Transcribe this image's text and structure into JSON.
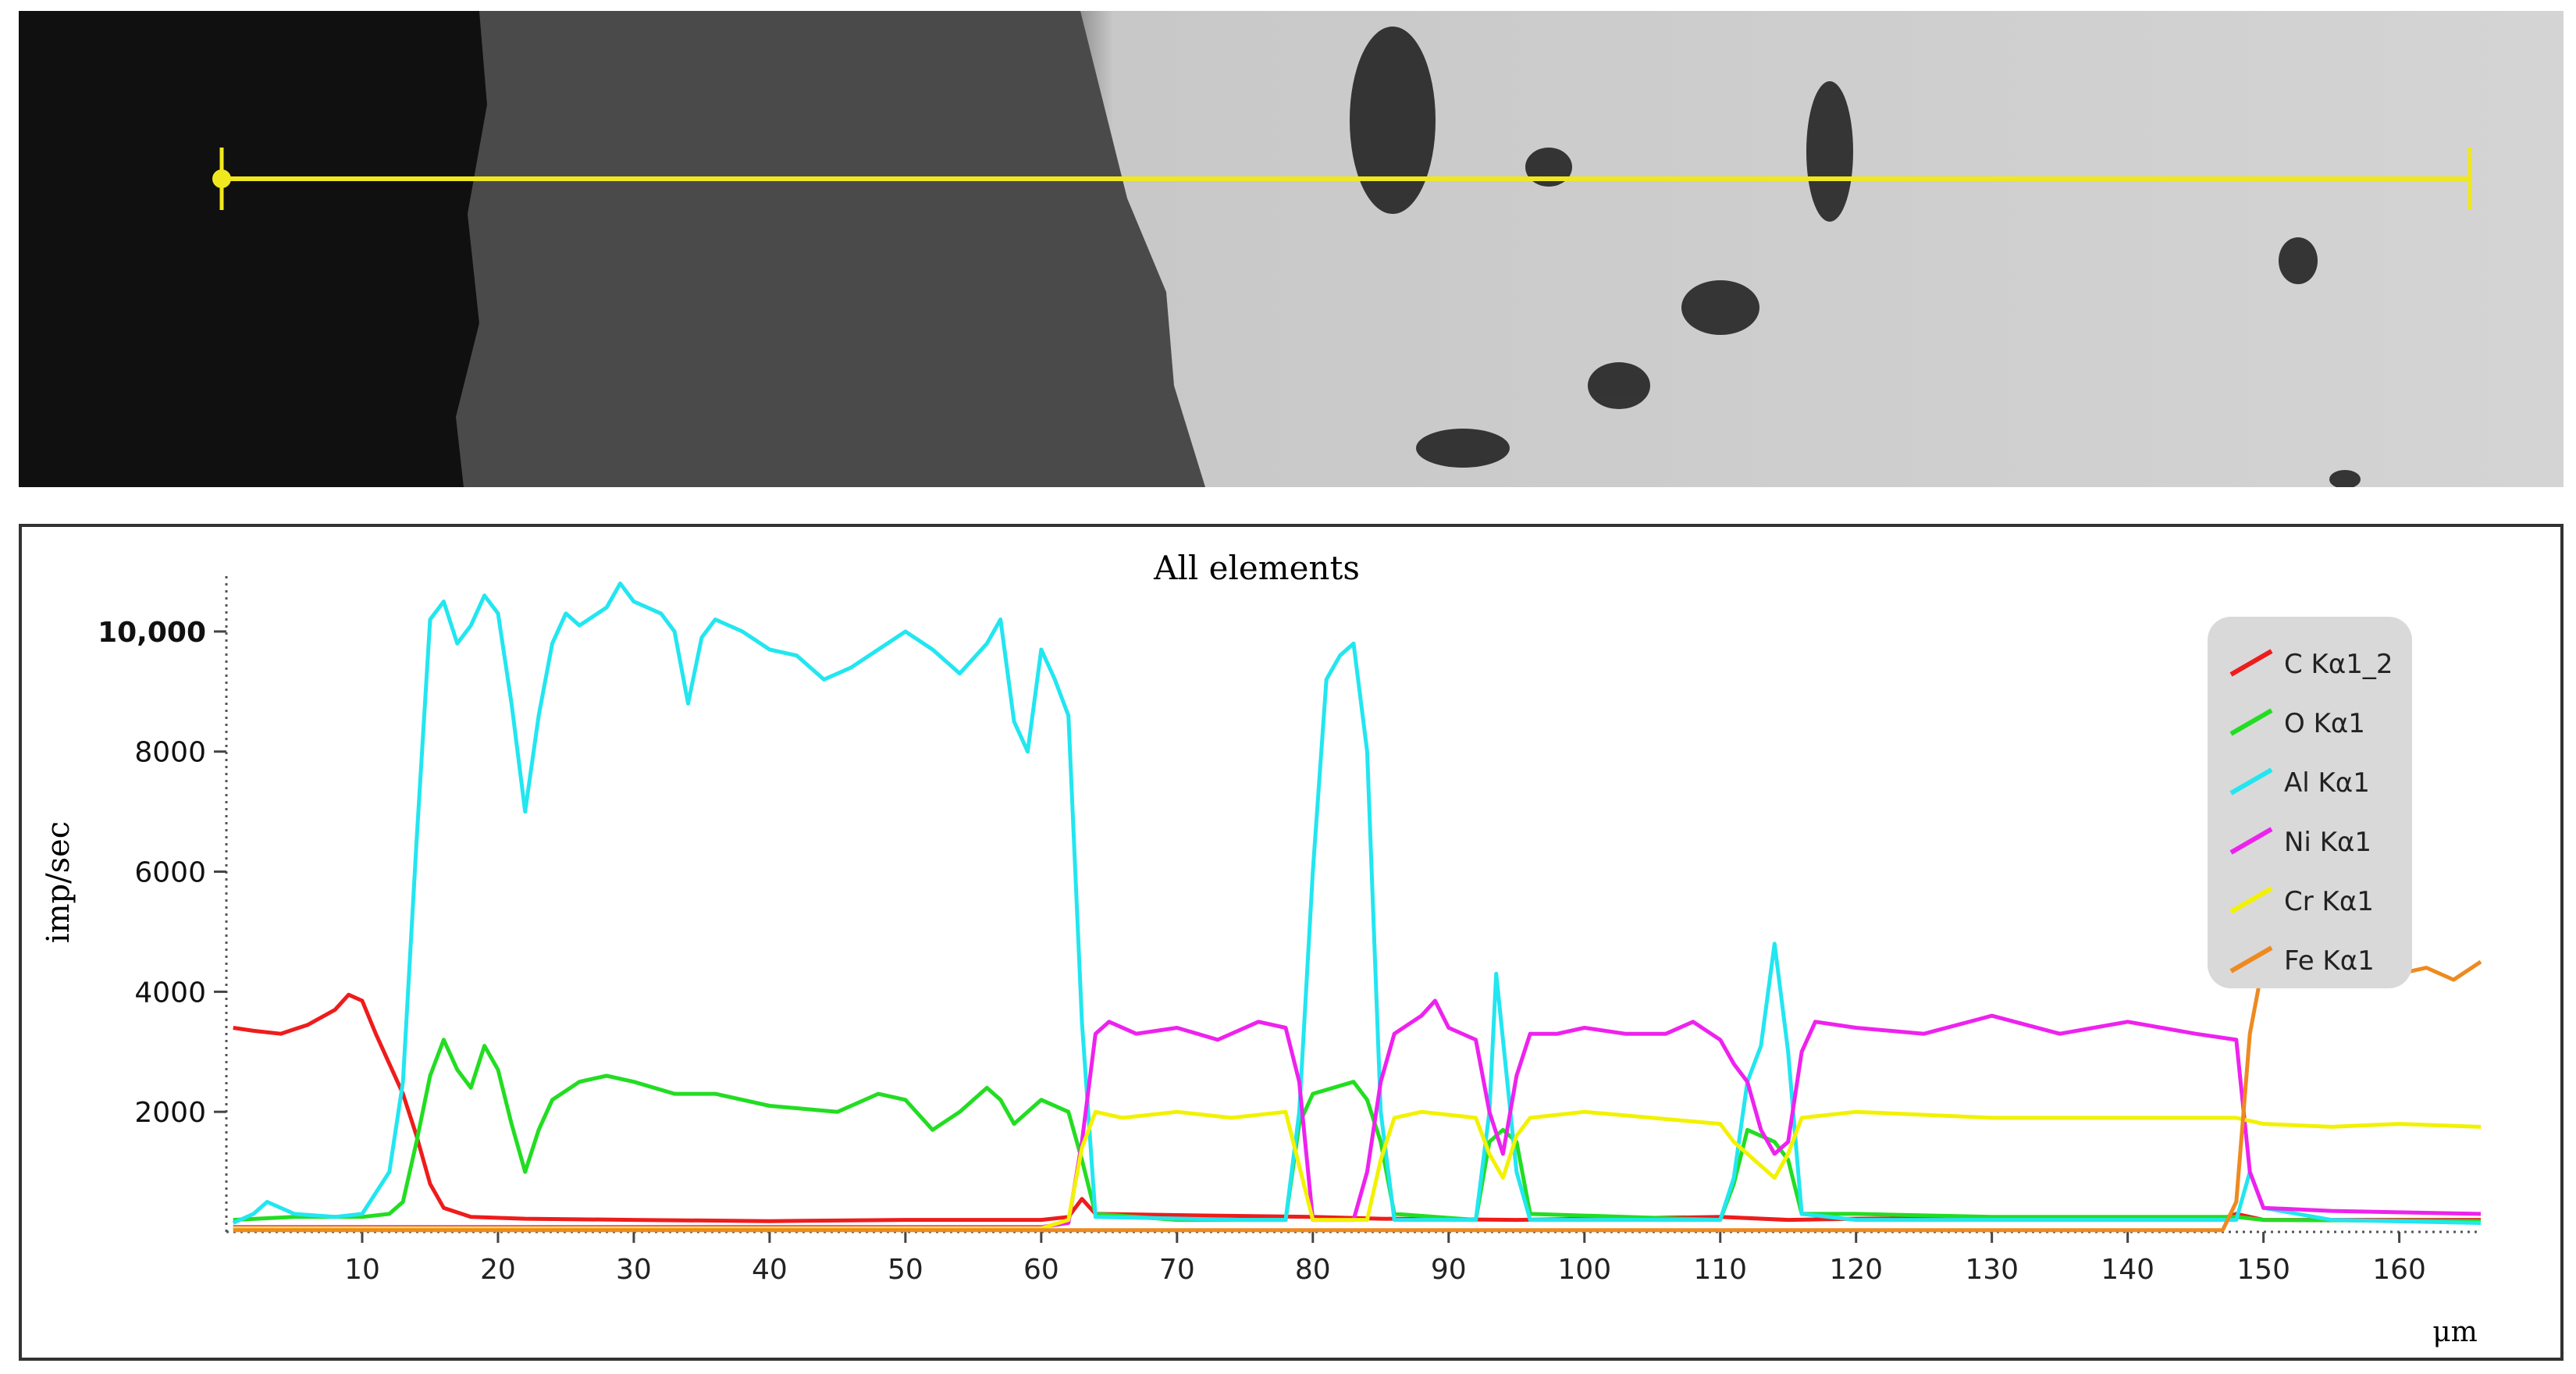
{
  "colors": {
    "C": "#ee1c1c",
    "O": "#22dd22",
    "Al": "#22e6f0",
    "Ni": "#ee22ee",
    "Cr": "#f2f200",
    "Fe": "#ee8a20",
    "scan_line": "#f0e81e"
  },
  "chart_data": {
    "type": "line",
    "title": "All elements",
    "xlabel": "μm",
    "ylabel": "imp/sec",
    "xlim": [
      0,
      166
    ],
    "ylim": [
      0,
      11000
    ],
    "x_ticks": [
      10,
      20,
      30,
      40,
      50,
      60,
      70,
      80,
      90,
      100,
      110,
      120,
      130,
      140,
      150,
      160
    ],
    "y_ticks": [
      {
        "value": 2000,
        "label": "2000"
      },
      {
        "value": 4000,
        "label": "4000"
      },
      {
        "value": 6000,
        "label": "6000"
      },
      {
        "value": 8000,
        "label": "8000"
      },
      {
        "value": 10000,
        "label": "10,000"
      }
    ],
    "grid": false,
    "legend_position": "top-right",
    "series": [
      {
        "key": "C",
        "name": "C Kα1_2",
        "points": [
          [
            0.5,
            3400
          ],
          [
            2,
            3350
          ],
          [
            4,
            3300
          ],
          [
            6,
            3450
          ],
          [
            8,
            3700
          ],
          [
            9,
            3950
          ],
          [
            10,
            3850
          ],
          [
            11,
            3300
          ],
          [
            12,
            2800
          ],
          [
            13,
            2300
          ],
          [
            14,
            1600
          ],
          [
            15,
            800
          ],
          [
            16,
            400
          ],
          [
            18,
            250
          ],
          [
            22,
            220
          ],
          [
            30,
            200
          ],
          [
            40,
            180
          ],
          [
            50,
            200
          ],
          [
            60,
            200
          ],
          [
            62,
            250
          ],
          [
            63,
            550
          ],
          [
            64,
            300
          ],
          [
            70,
            280
          ],
          [
            80,
            250
          ],
          [
            85,
            220
          ],
          [
            95,
            200
          ],
          [
            110,
            250
          ],
          [
            115,
            200
          ],
          [
            120,
            220
          ],
          [
            130,
            230
          ],
          [
            140,
            220
          ],
          [
            147,
            220
          ],
          [
            148,
            300
          ],
          [
            150,
            200
          ],
          [
            166,
            200
          ]
        ]
      },
      {
        "key": "O",
        "name": "O Kα1",
        "points": [
          [
            0.5,
            200
          ],
          [
            5,
            250
          ],
          [
            10,
            250
          ],
          [
            12,
            300
          ],
          [
            13,
            500
          ],
          [
            14,
            1500
          ],
          [
            15,
            2600
          ],
          [
            16,
            3200
          ],
          [
            17,
            2700
          ],
          [
            18,
            2400
          ],
          [
            19,
            3100
          ],
          [
            20,
            2700
          ],
          [
            21,
            1800
          ],
          [
            22,
            1000
          ],
          [
            23,
            1700
          ],
          [
            24,
            2200
          ],
          [
            26,
            2500
          ],
          [
            28,
            2600
          ],
          [
            30,
            2500
          ],
          [
            33,
            2300
          ],
          [
            36,
            2300
          ],
          [
            40,
            2100
          ],
          [
            45,
            2000
          ],
          [
            48,
            2300
          ],
          [
            50,
            2200
          ],
          [
            52,
            1700
          ],
          [
            54,
            2000
          ],
          [
            56,
            2400
          ],
          [
            57,
            2200
          ],
          [
            58,
            1800
          ],
          [
            60,
            2200
          ],
          [
            62,
            2000
          ],
          [
            63,
            1200
          ],
          [
            64,
            300
          ],
          [
            70,
            200
          ],
          [
            78,
            200
          ],
          [
            79,
            1800
          ],
          [
            80,
            2300
          ],
          [
            83,
            2500
          ],
          [
            84,
            2200
          ],
          [
            85,
            1500
          ],
          [
            86,
            300
          ],
          [
            92,
            200
          ],
          [
            93,
            1500
          ],
          [
            94,
            1700
          ],
          [
            95,
            1500
          ],
          [
            96,
            300
          ],
          [
            110,
            200
          ],
          [
            111,
            800
          ],
          [
            112,
            1700
          ],
          [
            113,
            1600
          ],
          [
            114,
            1500
          ],
          [
            115,
            1200
          ],
          [
            116,
            300
          ],
          [
            118,
            300
          ],
          [
            120,
            300
          ],
          [
            130,
            250
          ],
          [
            140,
            250
          ],
          [
            148,
            250
          ],
          [
            150,
            200
          ],
          [
            166,
            180
          ]
        ]
      },
      {
        "key": "Al",
        "name": "Al Kα1",
        "points": [
          [
            0.5,
            150
          ],
          [
            2,
            300
          ],
          [
            3,
            500
          ],
          [
            5,
            300
          ],
          [
            8,
            250
          ],
          [
            10,
            300
          ],
          [
            12,
            1000
          ],
          [
            13,
            2500
          ],
          [
            14,
            6500
          ],
          [
            15,
            10200
          ],
          [
            16,
            10500
          ],
          [
            17,
            9800
          ],
          [
            18,
            10100
          ],
          [
            19,
            10600
          ],
          [
            20,
            10300
          ],
          [
            21,
            8800
          ],
          [
            22,
            7000
          ],
          [
            23,
            8600
          ],
          [
            24,
            9800
          ],
          [
            25,
            10300
          ],
          [
            26,
            10100
          ],
          [
            28,
            10400
          ],
          [
            29,
            10800
          ],
          [
            30,
            10500
          ],
          [
            32,
            10300
          ],
          [
            33,
            10000
          ],
          [
            34,
            8800
          ],
          [
            35,
            9900
          ],
          [
            36,
            10200
          ],
          [
            38,
            10000
          ],
          [
            40,
            9700
          ],
          [
            42,
            9600
          ],
          [
            44,
            9200
          ],
          [
            46,
            9400
          ],
          [
            48,
            9700
          ],
          [
            50,
            10000
          ],
          [
            52,
            9700
          ],
          [
            54,
            9300
          ],
          [
            56,
            9800
          ],
          [
            57,
            10200
          ],
          [
            58,
            8500
          ],
          [
            59,
            8000
          ],
          [
            60,
            9700
          ],
          [
            61,
            9200
          ],
          [
            62,
            8600
          ],
          [
            63,
            3500
          ],
          [
            64,
            250
          ],
          [
            75,
            200
          ],
          [
            78,
            200
          ],
          [
            79,
            2000
          ],
          [
            80,
            6000
          ],
          [
            81,
            9200
          ],
          [
            82,
            9600
          ],
          [
            83,
            9800
          ],
          [
            84,
            8000
          ],
          [
            85,
            2000
          ],
          [
            86,
            200
          ],
          [
            92,
            200
          ],
          [
            93,
            2000
          ],
          [
            93.5,
            4300
          ],
          [
            94,
            3200
          ],
          [
            95,
            1000
          ],
          [
            96,
            200
          ],
          [
            110,
            200
          ],
          [
            111,
            900
          ],
          [
            112,
            2500
          ],
          [
            113,
            3100
          ],
          [
            114,
            4800
          ],
          [
            115,
            3000
          ],
          [
            116,
            300
          ],
          [
            120,
            200
          ],
          [
            130,
            200
          ],
          [
            148,
            200
          ],
          [
            149,
            1000
          ],
          [
            150,
            400
          ],
          [
            155,
            200
          ],
          [
            166,
            150
          ]
        ]
      },
      {
        "key": "Ni",
        "name": "Ni Kα1",
        "points": [
          [
            0.5,
            80
          ],
          [
            60,
            80
          ],
          [
            62,
            150
          ],
          [
            63,
            1500
          ],
          [
            64,
            3300
          ],
          [
            65,
            3500
          ],
          [
            67,
            3300
          ],
          [
            70,
            3400
          ],
          [
            73,
            3200
          ],
          [
            76,
            3500
          ],
          [
            78,
            3400
          ],
          [
            79,
            2500
          ],
          [
            80,
            200
          ],
          [
            83,
            200
          ],
          [
            84,
            1000
          ],
          [
            85,
            2500
          ],
          [
            86,
            3300
          ],
          [
            88,
            3600
          ],
          [
            89,
            3850
          ],
          [
            90,
            3400
          ],
          [
            92,
            3200
          ],
          [
            93,
            2000
          ],
          [
            94,
            1300
          ],
          [
            95,
            2600
          ],
          [
            96,
            3300
          ],
          [
            98,
            3300
          ],
          [
            100,
            3400
          ],
          [
            103,
            3300
          ],
          [
            106,
            3300
          ],
          [
            108,
            3500
          ],
          [
            110,
            3200
          ],
          [
            111,
            2800
          ],
          [
            112,
            2500
          ],
          [
            113,
            1700
          ],
          [
            114,
            1300
          ],
          [
            115,
            1500
          ],
          [
            116,
            3000
          ],
          [
            117,
            3500
          ],
          [
            120,
            3400
          ],
          [
            125,
            3300
          ],
          [
            130,
            3600
          ],
          [
            135,
            3300
          ],
          [
            140,
            3500
          ],
          [
            145,
            3300
          ],
          [
            148,
            3200
          ],
          [
            149,
            1000
          ],
          [
            150,
            400
          ],
          [
            155,
            350
          ],
          [
            166,
            300
          ]
        ]
      },
      {
        "key": "Cr",
        "name": "Cr Kα1",
        "points": [
          [
            0.5,
            60
          ],
          [
            60,
            60
          ],
          [
            62,
            200
          ],
          [
            63,
            1400
          ],
          [
            64,
            2000
          ],
          [
            66,
            1900
          ],
          [
            70,
            2000
          ],
          [
            74,
            1900
          ],
          [
            78,
            2000
          ],
          [
            79,
            1100
          ],
          [
            80,
            200
          ],
          [
            84,
            200
          ],
          [
            85,
            1200
          ],
          [
            86,
            1900
          ],
          [
            88,
            2000
          ],
          [
            92,
            1900
          ],
          [
            93,
            1300
          ],
          [
            94,
            900
          ],
          [
            95,
            1600
          ],
          [
            96,
            1900
          ],
          [
            100,
            2000
          ],
          [
            105,
            1900
          ],
          [
            110,
            1800
          ],
          [
            111,
            1500
          ],
          [
            112,
            1300
          ],
          [
            113,
            1100
          ],
          [
            114,
            900
          ],
          [
            115,
            1300
          ],
          [
            116,
            1900
          ],
          [
            120,
            2000
          ],
          [
            130,
            1900
          ],
          [
            140,
            1900
          ],
          [
            148,
            1900
          ],
          [
            150,
            1800
          ],
          [
            155,
            1750
          ],
          [
            160,
            1800
          ],
          [
            166,
            1750
          ]
        ]
      },
      {
        "key": "Fe",
        "name": "Fe Kα1",
        "points": [
          [
            0.5,
            30
          ],
          [
            147,
            30
          ],
          [
            148,
            500
          ],
          [
            149,
            3300
          ],
          [
            150,
            4500
          ],
          [
            152,
            4400
          ],
          [
            155,
            4300
          ],
          [
            158,
            4500
          ],
          [
            160,
            4300
          ],
          [
            162,
            4400
          ],
          [
            164,
            4200
          ],
          [
            166,
            4500
          ]
        ]
      }
    ]
  }
}
